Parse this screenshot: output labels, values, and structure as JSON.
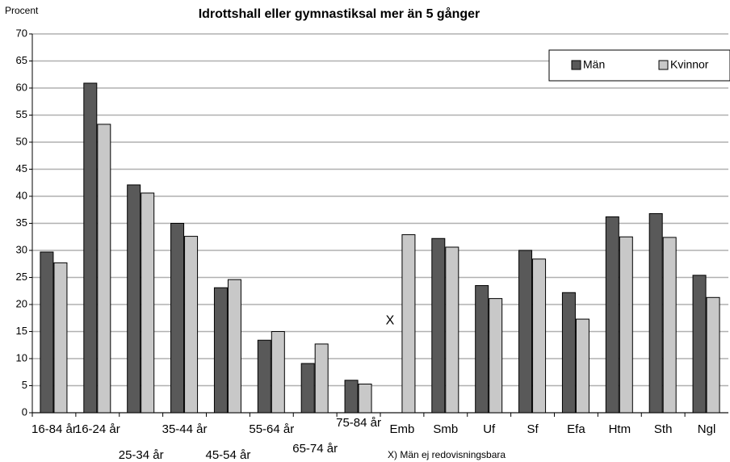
{
  "chart_data": {
    "type": "bar",
    "title": "Idrottshall eller gymnastiksal mer än 5 gånger",
    "y_label": "Procent",
    "categories": [
      "16-84 år",
      "16-24 år",
      "25-34 år",
      "35-44 år",
      "45-54 år",
      "55-64 år",
      "65-74 år",
      "75-84 år",
      "Emb",
      "Smb",
      "Uf",
      "Sf",
      "Efa",
      "Htm",
      "Sth",
      "Ngl"
    ],
    "series": [
      {
        "name": "Män",
        "color": "#595959",
        "values": [
          29.7,
          60.9,
          42.1,
          35.0,
          23.1,
          13.4,
          9.1,
          6.0,
          null,
          32.2,
          23.5,
          30.0,
          22.2,
          36.2,
          36.8,
          25.4
        ]
      },
      {
        "name": "Kvinnor",
        "color": "#c8c8c8",
        "values": [
          27.7,
          53.3,
          40.6,
          32.6,
          24.6,
          15.0,
          12.7,
          5.3,
          32.9,
          30.6,
          21.1,
          28.4,
          17.3,
          32.5,
          32.4,
          21.3
        ]
      }
    ],
    "annotations": [
      "X",
      "X) Män ej redovisningsbara"
    ],
    "ylim": [
      0,
      70
    ],
    "yticks": [
      0,
      5,
      10,
      15,
      20,
      25,
      30,
      35,
      40,
      45,
      50,
      55,
      60,
      65,
      70
    ],
    "grid": true,
    "legend": "upper right"
  }
}
